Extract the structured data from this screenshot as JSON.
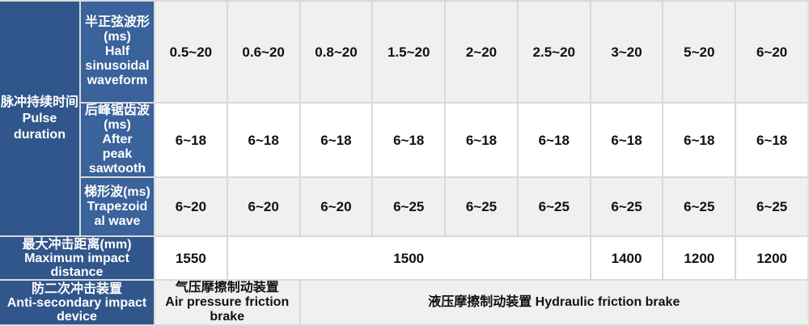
{
  "table": {
    "pulse_header": "脉冲持续时间\nPulse\nduration",
    "waveform_rows": [
      {
        "header": "半正弦波形\n(ms)\nHalf\nsinusoidal\nwaveform",
        "values": [
          "0.5~20",
          "0.6~20",
          "0.8~20",
          "1.5~20",
          "2~20",
          "2.5~20",
          "3~20",
          "5~20",
          "6~20"
        ]
      },
      {
        "header": "后峰锯齿波\n(ms)\nAfter\npeak\nsawtooth",
        "values": [
          "6~18",
          "6~18",
          "6~18",
          "6~18",
          "6~18",
          "6~18",
          "6~18",
          "6~18",
          "6~18"
        ]
      },
      {
        "header": "梯形波(ms)\nTrapezoid\nal wave",
        "values": [
          "6~20",
          "6~20",
          "6~20",
          "6~25",
          "6~25",
          "6~25",
          "6~25",
          "6~25",
          "6~25"
        ]
      }
    ],
    "max_impact": {
      "header": "最大冲击距离(mm)\nMaximum impact\ndistance",
      "cells": [
        {
          "value": "1550",
          "span": 1
        },
        {
          "value": "1500",
          "span": 5
        },
        {
          "value": "1400",
          "span": 1
        },
        {
          "value": "1200",
          "span": 1
        },
        {
          "value": "1200",
          "span": 1
        }
      ]
    },
    "anti_secondary": {
      "header": "防二次冲击装置\nAnti-secondary impact\ndevice",
      "cells": [
        {
          "value": "气压摩擦制动装置\nAir pressure friction\nbrake",
          "span": 2
        },
        {
          "value": "液压摩擦制动装置 Hydraulic friction brake",
          "span": 7
        }
      ]
    },
    "colors": {
      "header_dark": "#31568B",
      "header_mid": "#3A629B",
      "row_shaded": "#F0F0F0",
      "row_plain": "#FFFFFF",
      "grid_line": "#D9D9D9",
      "header_text": "#FFFFFF",
      "value_text": "#111111"
    }
  }
}
